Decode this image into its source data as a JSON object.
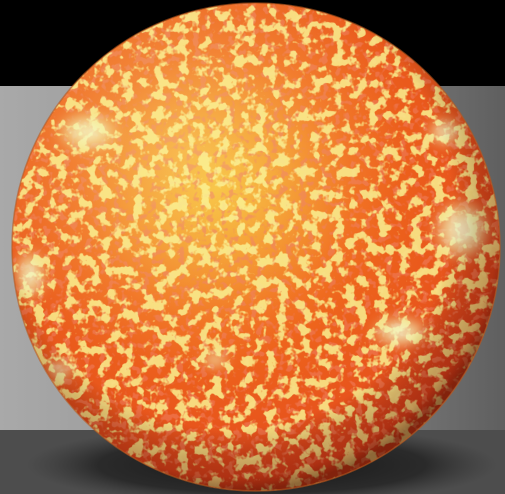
{
  "image": {
    "subject": "sun-sphere-render",
    "colors": {
      "sky": "#000000",
      "backdrop_light": "#a9a9a9",
      "backdrop_dark": "#5f5f5f",
      "floor": "#4d4d4d",
      "shadow": "#1c1c1c",
      "surface_deep": "#d9381a",
      "surface_mid": "#f06a1c",
      "surface_bright": "#f6b52a",
      "granule_yellow": "#f2e04a",
      "faculae": "#f4f7d0",
      "rim": "#b9571c"
    }
  }
}
